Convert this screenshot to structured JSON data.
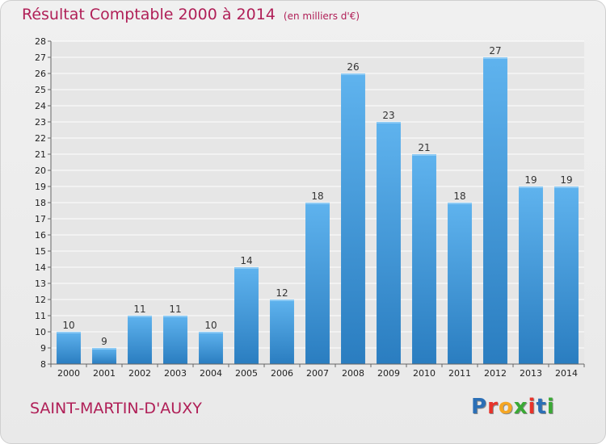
{
  "header": {
    "title": "Résultat Comptable 2000 à 2014",
    "subtitle": "(en milliers d'€)"
  },
  "footer": {
    "commune": "SAINT-MARTIN-D'AUXY",
    "logo": [
      "P",
      "r",
      "o",
      "x",
      "i",
      "t",
      "i"
    ],
    "logo_colors": [
      "#2b6fb6",
      "#e8332a",
      "#f5a623",
      "#3aa935",
      "#e8332a",
      "#2b6fb6",
      "#3aa935"
    ]
  },
  "chart_data": {
    "type": "bar",
    "categories": [
      "2000",
      "2001",
      "2002",
      "2003",
      "2004",
      "2005",
      "2006",
      "2007",
      "2008",
      "2009",
      "2010",
      "2011",
      "2012",
      "2013",
      "2014"
    ],
    "values": [
      10,
      9,
      11,
      11,
      10,
      14,
      12,
      18,
      26,
      23,
      21,
      18,
      27,
      19,
      19
    ],
    "data_labels": [
      "10",
      "9",
      "11",
      "11",
      "10",
      "14",
      "12",
      "18",
      "26",
      "23",
      "21",
      "18",
      "27",
      "19",
      "19"
    ],
    "title": "Résultat Comptable 2000 à 2014",
    "xlabel": "",
    "ylabel": "",
    "ylim": [
      8,
      28
    ],
    "yticks": [
      "8",
      "9",
      "10",
      "11",
      "12",
      "13",
      "14",
      "15",
      "16",
      "17",
      "18",
      "19",
      "20",
      "21",
      "22",
      "23",
      "24",
      "25",
      "26",
      "27",
      "28"
    ],
    "grid": true,
    "bar_color": "#4aa3e3"
  }
}
